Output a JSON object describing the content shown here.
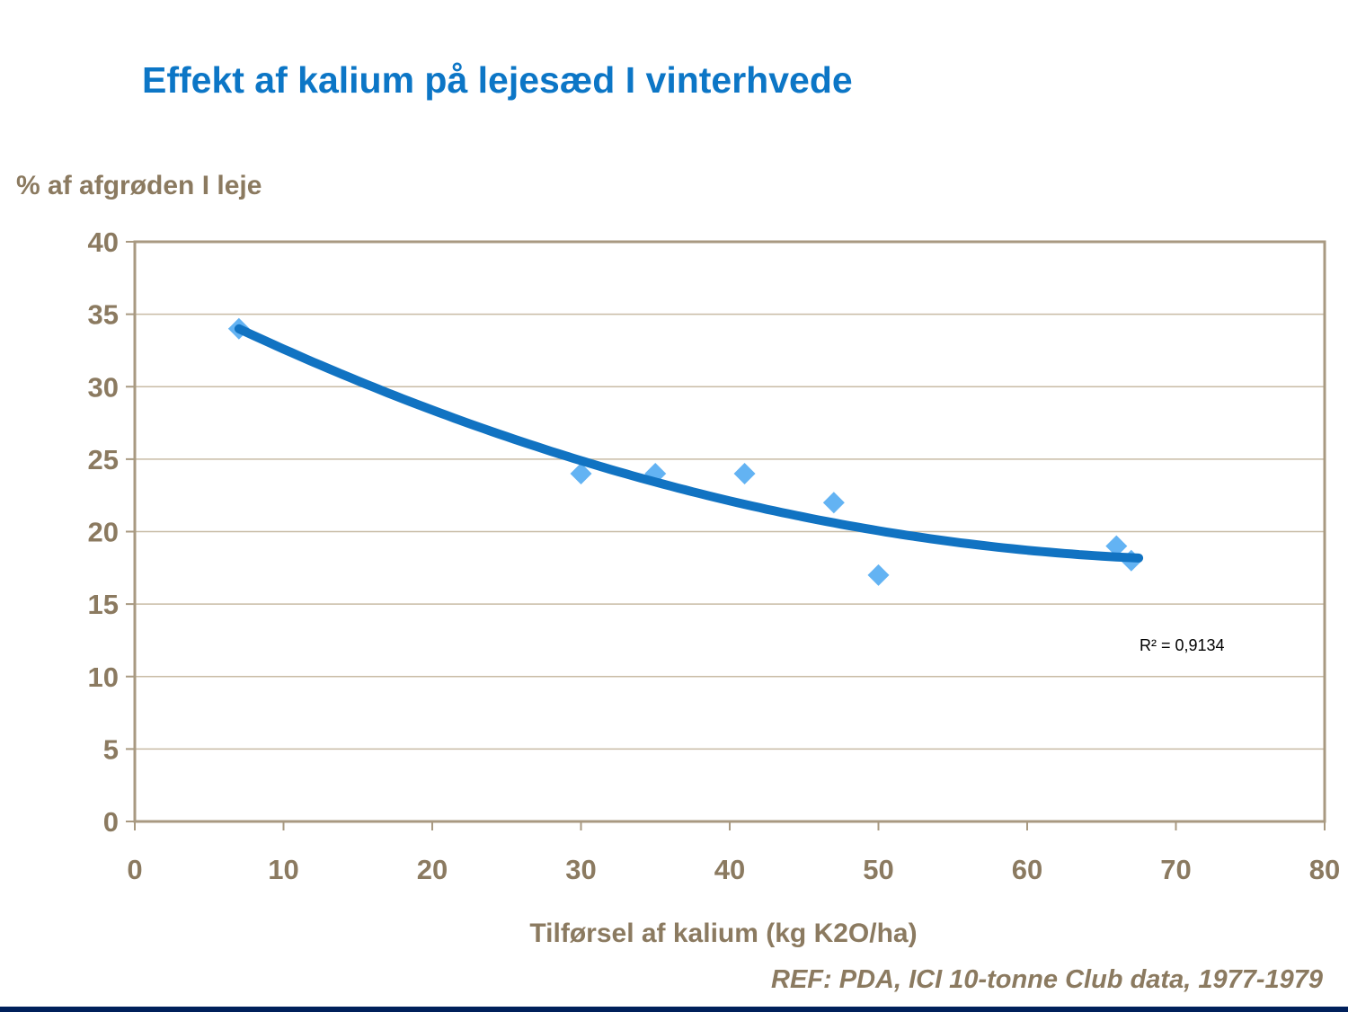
{
  "page": {
    "title": "Effekt af kalium på lejesæd I vinterhvede"
  },
  "chart_data": {
    "type": "scatter",
    "title": "Effekt af kalium på lejesæd I vinterhvede",
    "y_axis_title": "% af afgrøden I leje",
    "x_axis_title": "Tilførsel af kalium (kg K2O/ha)",
    "xlim": [
      0,
      80
    ],
    "ylim": [
      0,
      40
    ],
    "x_ticks": [
      0,
      10,
      20,
      30,
      40,
      50,
      60,
      70,
      80
    ],
    "y_ticks": [
      0,
      5,
      10,
      15,
      20,
      25,
      30,
      35,
      40
    ],
    "grid": "horizontal",
    "legend": "none",
    "points": [
      {
        "x": 7,
        "y": 34
      },
      {
        "x": 30,
        "y": 24
      },
      {
        "x": 35,
        "y": 24
      },
      {
        "x": 41,
        "y": 24
      },
      {
        "x": 47,
        "y": 22
      },
      {
        "x": 50,
        "y": 17
      },
      {
        "x": 66,
        "y": 19
      },
      {
        "x": 67,
        "y": 18
      }
    ],
    "trendline": {
      "type": "polynomial-2",
      "a": 37.52,
      "b": -0.528,
      "c": 0.003577,
      "x_start": 7,
      "x_end": 67.5
    },
    "r_squared_label": "R² = 0,9134",
    "reference": "REF: PDA, ICI 10-tonne Club data, 1977-1979"
  },
  "colors": {
    "title_blue": "#0C76C6",
    "axis_text_brown": "#8B7A60",
    "gridline": "#C8BBA5",
    "axis_border": "#A89981",
    "trendline_blue": "#1173C2",
    "point_blue": "#63B3F3",
    "annotation_black": "#000000",
    "bottom_bar_navy": "#00205B"
  }
}
